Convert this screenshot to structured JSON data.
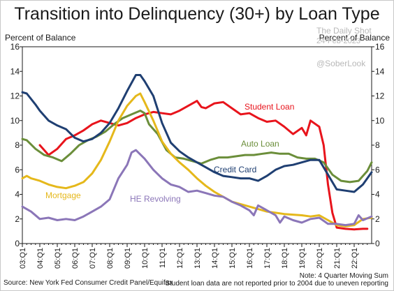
{
  "title": "Transition into Delinquency (30+) by Loan Type",
  "left_axis_title": "Percent of Balance",
  "right_axis_title": "Percent of Balance",
  "watermark": {
    "line1": "The Daily Shot",
    "line2": "24-Feb-2023",
    "line3": "@SoberLook"
  },
  "source": "Source: New York Fed Consumer Credit Panel/Equifax",
  "note1": "Note: 4 Quarter Moving Sum",
  "note2": "Student loan data are not reported prior to 2004 due to uneven reporting",
  "colors": {
    "student_loan": "#e8141c",
    "auto_loan": "#6b8e3a",
    "credit_card": "#1f3f72",
    "mortgage": "#e5b81b",
    "he_revolving": "#8b76b8"
  },
  "chart_data": {
    "type": "line",
    "xlabel": "",
    "ylabel": "Percent of Balance",
    "ylim": [
      0,
      16
    ],
    "yticks": [
      0,
      2,
      4,
      6,
      8,
      10,
      12,
      14,
      16
    ],
    "xlim": [
      2003.0,
      2023.0
    ],
    "xtick_labels": [
      "03:Q1",
      "04:Q1",
      "05:Q1",
      "06:Q1",
      "07:Q1",
      "08:Q1",
      "09:Q1",
      "10:Q1",
      "11:Q1",
      "12:Q1",
      "13:Q1",
      "14:Q1",
      "15:Q1",
      "16:Q1",
      "17:Q1",
      "18:Q1",
      "19:Q1",
      "20:Q1",
      "21:Q1",
      "22:Q1"
    ],
    "grid": false,
    "series": [
      {
        "name": "Student Loan",
        "key": "student_loan",
        "points": [
          [
            2004.0,
            8.0
          ],
          [
            2004.5,
            7.2
          ],
          [
            2005.0,
            7.7
          ],
          [
            2005.5,
            8.5
          ],
          [
            2006.0,
            8.8
          ],
          [
            2006.5,
            9.2
          ],
          [
            2007.0,
            9.7
          ],
          [
            2007.5,
            10.0
          ],
          [
            2008.0,
            9.8
          ],
          [
            2008.5,
            9.6
          ],
          [
            2009.0,
            9.8
          ],
          [
            2009.5,
            10.2
          ],
          [
            2010.0,
            10.5
          ],
          [
            2010.5,
            10.7
          ],
          [
            2011.0,
            10.6
          ],
          [
            2011.5,
            10.5
          ],
          [
            2012.0,
            10.8
          ],
          [
            2012.5,
            11.2
          ],
          [
            2013.0,
            11.6
          ],
          [
            2013.25,
            11.1
          ],
          [
            2013.5,
            11.0
          ],
          [
            2014.0,
            11.4
          ],
          [
            2014.5,
            11.5
          ],
          [
            2015.0,
            11.0
          ],
          [
            2015.5,
            10.5
          ],
          [
            2016.0,
            10.6
          ],
          [
            2016.5,
            10.2
          ],
          [
            2017.0,
            9.9
          ],
          [
            2017.5,
            10.0
          ],
          [
            2018.0,
            9.5
          ],
          [
            2018.5,
            8.9
          ],
          [
            2019.0,
            9.4
          ],
          [
            2019.25,
            8.8
          ],
          [
            2019.5,
            10.0
          ],
          [
            2020.0,
            9.5
          ],
          [
            2020.25,
            8.0
          ],
          [
            2020.5,
            4.8
          ],
          [
            2020.75,
            2.5
          ],
          [
            2021.0,
            1.3
          ],
          [
            2021.5,
            1.2
          ],
          [
            2022.0,
            1.15
          ],
          [
            2022.5,
            1.2
          ],
          [
            2022.75,
            1.2
          ]
        ]
      },
      {
        "name": "Auto Loan",
        "key": "auto_loan",
        "points": [
          [
            2003.0,
            8.5
          ],
          [
            2003.25,
            8.4
          ],
          [
            2003.75,
            7.7
          ],
          [
            2004.25,
            7.2
          ],
          [
            2004.75,
            7.0
          ],
          [
            2005.25,
            6.7
          ],
          [
            2005.75,
            7.3
          ],
          [
            2006.25,
            8.0
          ],
          [
            2006.75,
            8.4
          ],
          [
            2007.25,
            8.7
          ],
          [
            2007.75,
            9.1
          ],
          [
            2008.25,
            9.7
          ],
          [
            2008.75,
            10.2
          ],
          [
            2009.25,
            10.5
          ],
          [
            2009.75,
            10.8
          ],
          [
            2010.0,
            10.6
          ],
          [
            2010.25,
            9.7
          ],
          [
            2010.75,
            8.9
          ],
          [
            2011.25,
            7.6
          ],
          [
            2011.75,
            7.0
          ],
          [
            2012.25,
            6.9
          ],
          [
            2012.75,
            6.7
          ],
          [
            2013.25,
            6.5
          ],
          [
            2013.75,
            6.8
          ],
          [
            2014.25,
            7.0
          ],
          [
            2014.75,
            7.0
          ],
          [
            2015.25,
            7.1
          ],
          [
            2015.75,
            7.2
          ],
          [
            2016.25,
            7.2
          ],
          [
            2016.75,
            7.3
          ],
          [
            2017.25,
            7.4
          ],
          [
            2017.75,
            7.3
          ],
          [
            2018.25,
            7.3
          ],
          [
            2018.75,
            7.0
          ],
          [
            2019.25,
            6.9
          ],
          [
            2019.75,
            6.9
          ],
          [
            2020.25,
            6.6
          ],
          [
            2020.75,
            5.6
          ],
          [
            2021.25,
            5.1
          ],
          [
            2021.75,
            5.0
          ],
          [
            2022.25,
            5.1
          ],
          [
            2022.75,
            5.9
          ],
          [
            2023.0,
            6.6
          ]
        ]
      },
      {
        "name": "Credit Card",
        "key": "credit_card",
        "points": [
          [
            2003.0,
            12.3
          ],
          [
            2003.25,
            12.2
          ],
          [
            2003.75,
            11.3
          ],
          [
            2004.0,
            10.8
          ],
          [
            2004.5,
            10.0
          ],
          [
            2005.0,
            9.6
          ],
          [
            2005.5,
            9.3
          ],
          [
            2006.0,
            8.6
          ],
          [
            2006.5,
            8.3
          ],
          [
            2007.0,
            8.5
          ],
          [
            2007.5,
            9.0
          ],
          [
            2008.0,
            9.8
          ],
          [
            2008.5,
            11.0
          ],
          [
            2009.0,
            12.4
          ],
          [
            2009.5,
            13.7
          ],
          [
            2009.75,
            13.7
          ],
          [
            2010.0,
            13.2
          ],
          [
            2010.5,
            12.0
          ],
          [
            2011.0,
            9.8
          ],
          [
            2011.5,
            8.2
          ],
          [
            2012.0,
            7.5
          ],
          [
            2012.5,
            7.0
          ],
          [
            2013.0,
            6.6
          ],
          [
            2013.5,
            6.2
          ],
          [
            2014.0,
            5.8
          ],
          [
            2014.5,
            5.5
          ],
          [
            2015.0,
            5.4
          ],
          [
            2015.5,
            5.3
          ],
          [
            2016.0,
            5.3
          ],
          [
            2016.5,
            5.1
          ],
          [
            2017.0,
            5.5
          ],
          [
            2017.5,
            6.0
          ],
          [
            2018.0,
            6.3
          ],
          [
            2018.5,
            6.4
          ],
          [
            2019.0,
            6.6
          ],
          [
            2019.5,
            6.8
          ],
          [
            2020.0,
            6.8
          ],
          [
            2020.5,
            5.6
          ],
          [
            2021.0,
            4.4
          ],
          [
            2021.5,
            4.3
          ],
          [
            2022.0,
            4.2
          ],
          [
            2022.5,
            4.8
          ],
          [
            2023.0,
            5.8
          ]
        ]
      },
      {
        "name": "Mortgage",
        "key": "mortgage",
        "points": [
          [
            2003.0,
            5.3
          ],
          [
            2003.25,
            5.5
          ],
          [
            2003.5,
            5.3
          ],
          [
            2004.0,
            5.1
          ],
          [
            2004.5,
            4.8
          ],
          [
            2005.0,
            4.6
          ],
          [
            2005.5,
            4.5
          ],
          [
            2006.0,
            4.7
          ],
          [
            2006.5,
            5.0
          ],
          [
            2007.0,
            5.7
          ],
          [
            2007.5,
            6.8
          ],
          [
            2008.0,
            8.3
          ],
          [
            2008.5,
            10.0
          ],
          [
            2009.0,
            11.2
          ],
          [
            2009.5,
            12.0
          ],
          [
            2009.75,
            12.2
          ],
          [
            2010.0,
            11.5
          ],
          [
            2010.5,
            10.0
          ],
          [
            2011.0,
            8.3
          ],
          [
            2011.5,
            7.3
          ],
          [
            2012.0,
            6.6
          ],
          [
            2012.5,
            6.0
          ],
          [
            2013.0,
            5.3
          ],
          [
            2013.5,
            4.7
          ],
          [
            2014.0,
            4.2
          ],
          [
            2014.5,
            3.8
          ],
          [
            2015.0,
            3.4
          ],
          [
            2015.5,
            3.2
          ],
          [
            2016.0,
            3.0
          ],
          [
            2016.5,
            2.8
          ],
          [
            2017.0,
            2.6
          ],
          [
            2017.5,
            2.5
          ],
          [
            2018.0,
            2.4
          ],
          [
            2018.5,
            2.35
          ],
          [
            2019.0,
            2.3
          ],
          [
            2019.5,
            2.2
          ],
          [
            2020.0,
            2.3
          ],
          [
            2020.5,
            1.9
          ],
          [
            2021.0,
            1.5
          ],
          [
            2021.5,
            1.4
          ],
          [
            2022.0,
            1.5
          ],
          [
            2022.5,
            2.0
          ],
          [
            2023.0,
            2.1
          ]
        ]
      },
      {
        "name": "HE Revolving",
        "key": "he_revolving",
        "points": [
          [
            2003.0,
            3.0
          ],
          [
            2003.5,
            2.6
          ],
          [
            2004.0,
            2.0
          ],
          [
            2004.5,
            2.1
          ],
          [
            2005.0,
            1.9
          ],
          [
            2005.5,
            2.0
          ],
          [
            2006.0,
            1.9
          ],
          [
            2006.5,
            2.2
          ],
          [
            2007.0,
            2.6
          ],
          [
            2007.5,
            3.0
          ],
          [
            2008.0,
            3.6
          ],
          [
            2008.5,
            5.3
          ],
          [
            2009.0,
            6.4
          ],
          [
            2009.25,
            7.4
          ],
          [
            2009.5,
            7.6
          ],
          [
            2010.0,
            6.9
          ],
          [
            2010.5,
            6.0
          ],
          [
            2011.0,
            5.3
          ],
          [
            2011.5,
            4.8
          ],
          [
            2012.0,
            4.6
          ],
          [
            2012.5,
            4.2
          ],
          [
            2013.0,
            4.3
          ],
          [
            2013.5,
            4.1
          ],
          [
            2014.0,
            3.9
          ],
          [
            2014.5,
            3.8
          ],
          [
            2015.0,
            3.4
          ],
          [
            2015.5,
            3.1
          ],
          [
            2016.0,
            2.7
          ],
          [
            2016.25,
            2.3
          ],
          [
            2016.5,
            3.1
          ],
          [
            2017.0,
            2.7
          ],
          [
            2017.5,
            2.3
          ],
          [
            2017.75,
            1.7
          ],
          [
            2018.0,
            2.2
          ],
          [
            2018.5,
            1.9
          ],
          [
            2019.0,
            1.7
          ],
          [
            2019.5,
            2.0
          ],
          [
            2020.0,
            2.1
          ],
          [
            2020.5,
            1.6
          ],
          [
            2021.0,
            1.6
          ],
          [
            2021.5,
            1.5
          ],
          [
            2022.0,
            1.6
          ],
          [
            2022.25,
            2.3
          ],
          [
            2022.5,
            1.9
          ],
          [
            2023.0,
            2.2
          ]
        ]
      }
    ]
  }
}
